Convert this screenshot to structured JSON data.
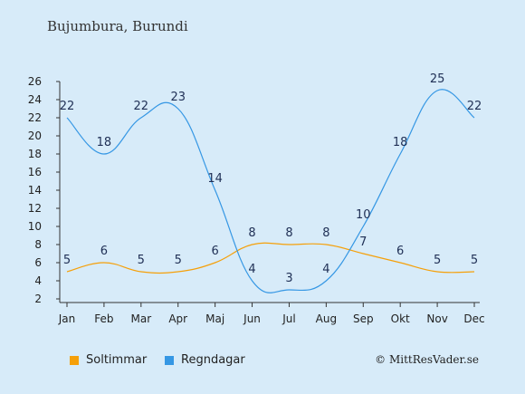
{
  "chart_data": {
    "type": "line",
    "title": "Bujumbura, Burundi",
    "credit": "© MittResVader.se",
    "categories": [
      "Jan",
      "Feb",
      "Mar",
      "Apr",
      "Maj",
      "Jun",
      "Jul",
      "Aug",
      "Sep",
      "Okt",
      "Nov",
      "Dec"
    ],
    "series": [
      {
        "name": "Soltimmar",
        "color": "#f5a00a",
        "values": [
          5,
          6,
          5,
          5,
          6,
          8,
          8,
          8,
          7,
          6,
          5,
          5
        ]
      },
      {
        "name": "Regndagar",
        "color": "#3597e4",
        "values": [
          22,
          18,
          22,
          23,
          14,
          4,
          3,
          4,
          10,
          18,
          25,
          22
        ]
      }
    ],
    "yticks": [
      2,
      4,
      6,
      8,
      10,
      12,
      14,
      16,
      18,
      20,
      22,
      24,
      26
    ],
    "ylim": [
      2,
      26
    ],
    "grid": false,
    "legend_position": "bottom-left"
  }
}
